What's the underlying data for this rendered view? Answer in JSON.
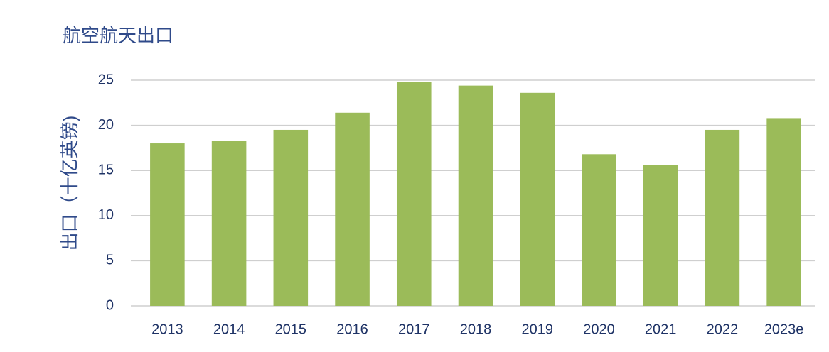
{
  "chart_data": {
    "type": "bar",
    "title": "航空航天出口",
    "y_label": "出口（十亿英镑)",
    "categories": [
      "2013",
      "2014",
      "2015",
      "2016",
      "2017",
      "2018",
      "2019",
      "2020",
      "2021",
      "2022",
      "2023e"
    ],
    "values": [
      18.0,
      18.3,
      19.5,
      21.4,
      24.8,
      24.4,
      23.6,
      16.8,
      15.6,
      19.5,
      20.8
    ],
    "color": "#9bbb59",
    "ylim": [
      0,
      25
    ],
    "yticks": [
      0,
      5,
      10,
      15,
      20,
      25
    ],
    "grid": true
  }
}
